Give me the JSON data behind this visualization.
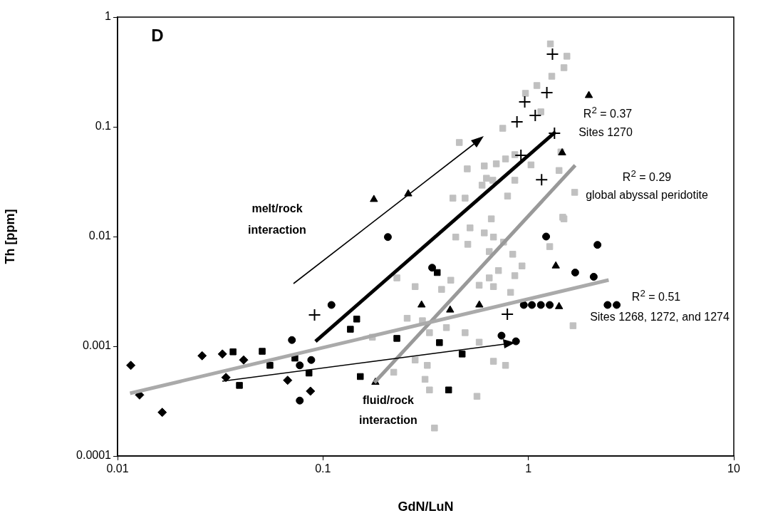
{
  "chart_data": {
    "type": "scatter",
    "xlabel": "GdN/LuN",
    "ylabel": "Th [ppm]",
    "log": "xy",
    "grid": false,
    "legend": false,
    "xlim": [
      0.01,
      10
    ],
    "xticks": [
      0.01,
      0.1,
      1,
      10
    ],
    "ylim": [
      0.0001,
      1
    ],
    "yticks": [
      0.0001,
      0.001,
      0.01,
      0.1,
      1
    ],
    "annotations": [
      "D",
      "melt/rock",
      "interaction",
      "fluid/rock",
      "interaction",
      "R$^{2}$ = 0.37",
      "Sites 1270",
      "R$^{2}$ = 0.29",
      "global abyssal peridotite",
      "R$^{2}$ = 0.51",
      "Sites 1268, 1272, and 1274"
    ],
    "series": [
      {
        "type": "scatter",
        "marker": "square",
        "color": "#c0c0c0",
        "x": [
          1.28,
          1.54,
          1.49,
          1.3,
          1.1,
          0.968,
          1.15,
          0.75,
          0.461,
          1.44,
          1.03,
          1.41,
          1.68,
          1.47,
          0.504,
          0.61,
          0.698,
          0.774,
          0.859,
          0.429,
          0.492,
          0.625,
          0.595,
          0.671,
          0.792,
          0.66,
          0.859,
          0.52,
          0.61,
          0.443,
          0.676,
          0.757,
          0.507,
          0.645,
          0.839,
          0.931,
          0.715,
          0.645,
          0.859,
          0.576,
          0.676,
          0.819,
          0.378,
          0.419,
          0.281,
          0.229,
          0.257,
          0.174,
          0.305,
          0.33,
          0.399,
          0.492,
          0.576,
          0.281,
          0.322,
          0.221,
          0.314,
          0.33,
          0.562,
          0.774,
          0.676,
          0.349,
          1.27,
          1.65,
          1.49
        ],
        "values": [
          0.57,
          0.44,
          0.346,
          0.289,
          0.238,
          0.202,
          0.137,
          0.097,
          0.072,
          0.059,
          0.045,
          0.04,
          0.0253,
          0.015,
          0.0414,
          0.044,
          0.046,
          0.051,
          0.0558,
          0.0224,
          0.0224,
          0.034,
          0.0294,
          0.0326,
          0.0234,
          0.0145,
          0.0326,
          0.012,
          0.0108,
          0.0099,
          0.0099,
          0.0089,
          0.0085,
          0.0073,
          0.0069,
          0.0054,
          0.0049,
          0.0042,
          0.0044,
          0.0036,
          0.0035,
          0.0031,
          0.0033,
          0.004,
          0.0035,
          0.0042,
          0.0018,
          0.00121,
          0.00171,
          0.00133,
          0.00148,
          0.00133,
          0.00109,
          0.00075,
          0.00067,
          0.00058,
          0.0005,
          0.0004,
          0.00035,
          0.00067,
          0.00073,
          0.00018,
          0.0081,
          0.00154,
          0.0145
        ]
      },
      {
        "type": "scatter",
        "marker": "diamond",
        "color": "#000000",
        "x": [
          0.0116,
          0.0128,
          0.0165,
          0.0258,
          0.0324,
          0.0411,
          0.0337,
          0.0673,
          0.0869
        ],
        "values": [
          0.00067,
          0.00036,
          0.00025,
          0.00082,
          0.00085,
          0.00075,
          0.00052,
          0.00049,
          0.00039
        ]
      },
      {
        "type": "scatter",
        "marker": "square",
        "color": "#000000",
        "x": [
          0.0365,
          0.0506,
          0.0552,
          0.0855,
          0.0392,
          0.146,
          0.229,
          0.369,
          0.36
        ],
        "values": [
          0.00089,
          0.0009,
          0.00067,
          0.00057,
          0.00044,
          0.00177,
          0.00118,
          0.00108,
          0.0047
        ]
      },
      {
        "type": "scatter",
        "marker": "circle",
        "color": "#000000",
        "x": [
          0.11,
          0.0706,
          0.0877,
          0.0771,
          0.0771,
          0.207,
          0.34,
          1.22,
          2.08,
          1.27
        ],
        "values": [
          0.00238,
          0.00114,
          0.00075,
          0.00067,
          0.00032,
          0.0099,
          0.0052,
          0.01,
          0.0043,
          0.00238
        ]
      },
      {
        "type": "scatter",
        "marker": "square",
        "color": "#000000",
        "x": [
          0.073,
          0.136,
          0.476,
          0.152,
          0.409
        ],
        "values": [
          0.00078,
          0.00143,
          0.00085,
          0.00053,
          0.0004
        ]
      },
      {
        "type": "scatter",
        "marker": "triangle",
        "color": "#000000",
        "x": [
          0.177,
          0.26,
          0.302,
          0.577
        ],
        "values": [
          0.0218,
          0.0245,
          0.00238,
          0.00238
        ]
      },
      {
        "type": "scatter",
        "marker": "triangle",
        "color": "#000000",
        "x": [
          0.416,
          0.18,
          1.97,
          1.46,
          1.36,
          1.41
        ],
        "values": [
          0.00214,
          0.00047,
          0.193,
          0.058,
          0.0054,
          0.0023
        ]
      },
      {
        "type": "scatter",
        "marker": "circle",
        "color": "#000000",
        "x": [
          2.17,
          1.69,
          2.43,
          2.69,
          1.04,
          0.95,
          1.15,
          0.74,
          0.87
        ],
        "values": [
          0.0084,
          0.0047,
          0.00238,
          0.00238,
          0.00238,
          0.00238,
          0.00238,
          0.00125,
          0.00111
        ]
      },
      {
        "type": "scatter",
        "marker": "cross",
        "color": "#000000",
        "x": [
          1.31,
          1.23,
          0.96,
          1.08,
          0.88,
          1.34,
          0.92,
          1.16,
          0.091,
          0.79
        ],
        "values": [
          0.46,
          0.205,
          0.169,
          0.127,
          0.111,
          0.0875,
          0.055,
          0.033,
          0.00193,
          0.00196
        ]
      },
      {
        "type": "line",
        "color": "#000000",
        "x": [
          0.092,
          1.355
        ],
        "values": [
          0.00111,
          0.09
        ]
      },
      {
        "type": "line",
        "color": "#999999",
        "x": [
          0.178,
          1.69
        ],
        "values": [
          0.000466,
          0.0446
        ]
      },
      {
        "type": "line",
        "color": "#aaaaaa",
        "x": [
          0.0115,
          2.46
        ],
        "values": [
          0.000373,
          0.00402
        ]
      }
    ]
  }
}
